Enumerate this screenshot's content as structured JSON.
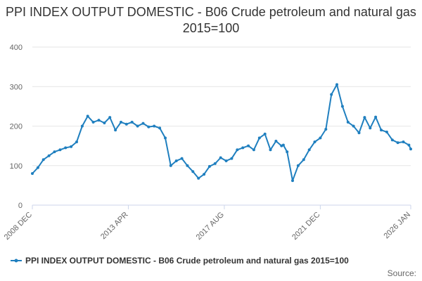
{
  "chart_data": {
    "type": "line",
    "title": "PPI INDEX OUTPUT DOMESTIC - B06 Crude petroleum and natural gas 2015=100",
    "xlabel": "",
    "ylabel": "",
    "ylim": [
      0,
      400
    ],
    "yticks": [
      "0",
      "100",
      "200",
      "300",
      "400"
    ],
    "xticks": [
      "2008 DEC",
      "2013 APR",
      "2017 AUG",
      "2021 DEC",
      "2026 JAN"
    ],
    "grid": true,
    "legend_position": "bottom",
    "series": [
      {
        "name": "PPI INDEX OUTPUT DOMESTIC - B06 Crude petroleum and natural gas 2015=100",
        "color": "#1f7fbf",
        "x": [
          "2008-12",
          "2009-03",
          "2009-06",
          "2009-09",
          "2009-12",
          "2010-03",
          "2010-06",
          "2010-09",
          "2010-12",
          "2011-03",
          "2011-06",
          "2011-09",
          "2011-12",
          "2012-03",
          "2012-06",
          "2012-09",
          "2012-12",
          "2013-03",
          "2013-06",
          "2013-09",
          "2013-12",
          "2014-03",
          "2014-06",
          "2014-09",
          "2014-12",
          "2015-03",
          "2015-06",
          "2015-09",
          "2015-12",
          "2016-03",
          "2016-06",
          "2016-09",
          "2016-12",
          "2017-03",
          "2017-06",
          "2017-09",
          "2017-12",
          "2018-03",
          "2018-06",
          "2018-09",
          "2018-12",
          "2019-03",
          "2019-06",
          "2019-09",
          "2019-12",
          "2020-03",
          "2020-04",
          "2020-06",
          "2020-09",
          "2020-12",
          "2021-03",
          "2021-06",
          "2021-09",
          "2021-12",
          "2022-03",
          "2022-06",
          "2022-09",
          "2022-12",
          "2023-03",
          "2023-06",
          "2023-09",
          "2023-12",
          "2024-03",
          "2024-06",
          "2024-09",
          "2024-12",
          "2025-03",
          "2025-06",
          "2025-09",
          "2025-12",
          "2026-01"
        ],
        "values": [
          80,
          95,
          115,
          125,
          135,
          140,
          145,
          148,
          160,
          200,
          225,
          210,
          215,
          208,
          222,
          190,
          210,
          205,
          210,
          200,
          207,
          198,
          200,
          195,
          170,
          100,
          112,
          118,
          100,
          85,
          68,
          78,
          98,
          105,
          120,
          112,
          118,
          140,
          145,
          150,
          140,
          170,
          180,
          140,
          162,
          150,
          152,
          135,
          62,
          100,
          115,
          140,
          160,
          170,
          192,
          280,
          305,
          250,
          210,
          200,
          183,
          222,
          195,
          223,
          190,
          185,
          165,
          158,
          160,
          152,
          142
        ]
      }
    ]
  },
  "source_label": "Source:"
}
